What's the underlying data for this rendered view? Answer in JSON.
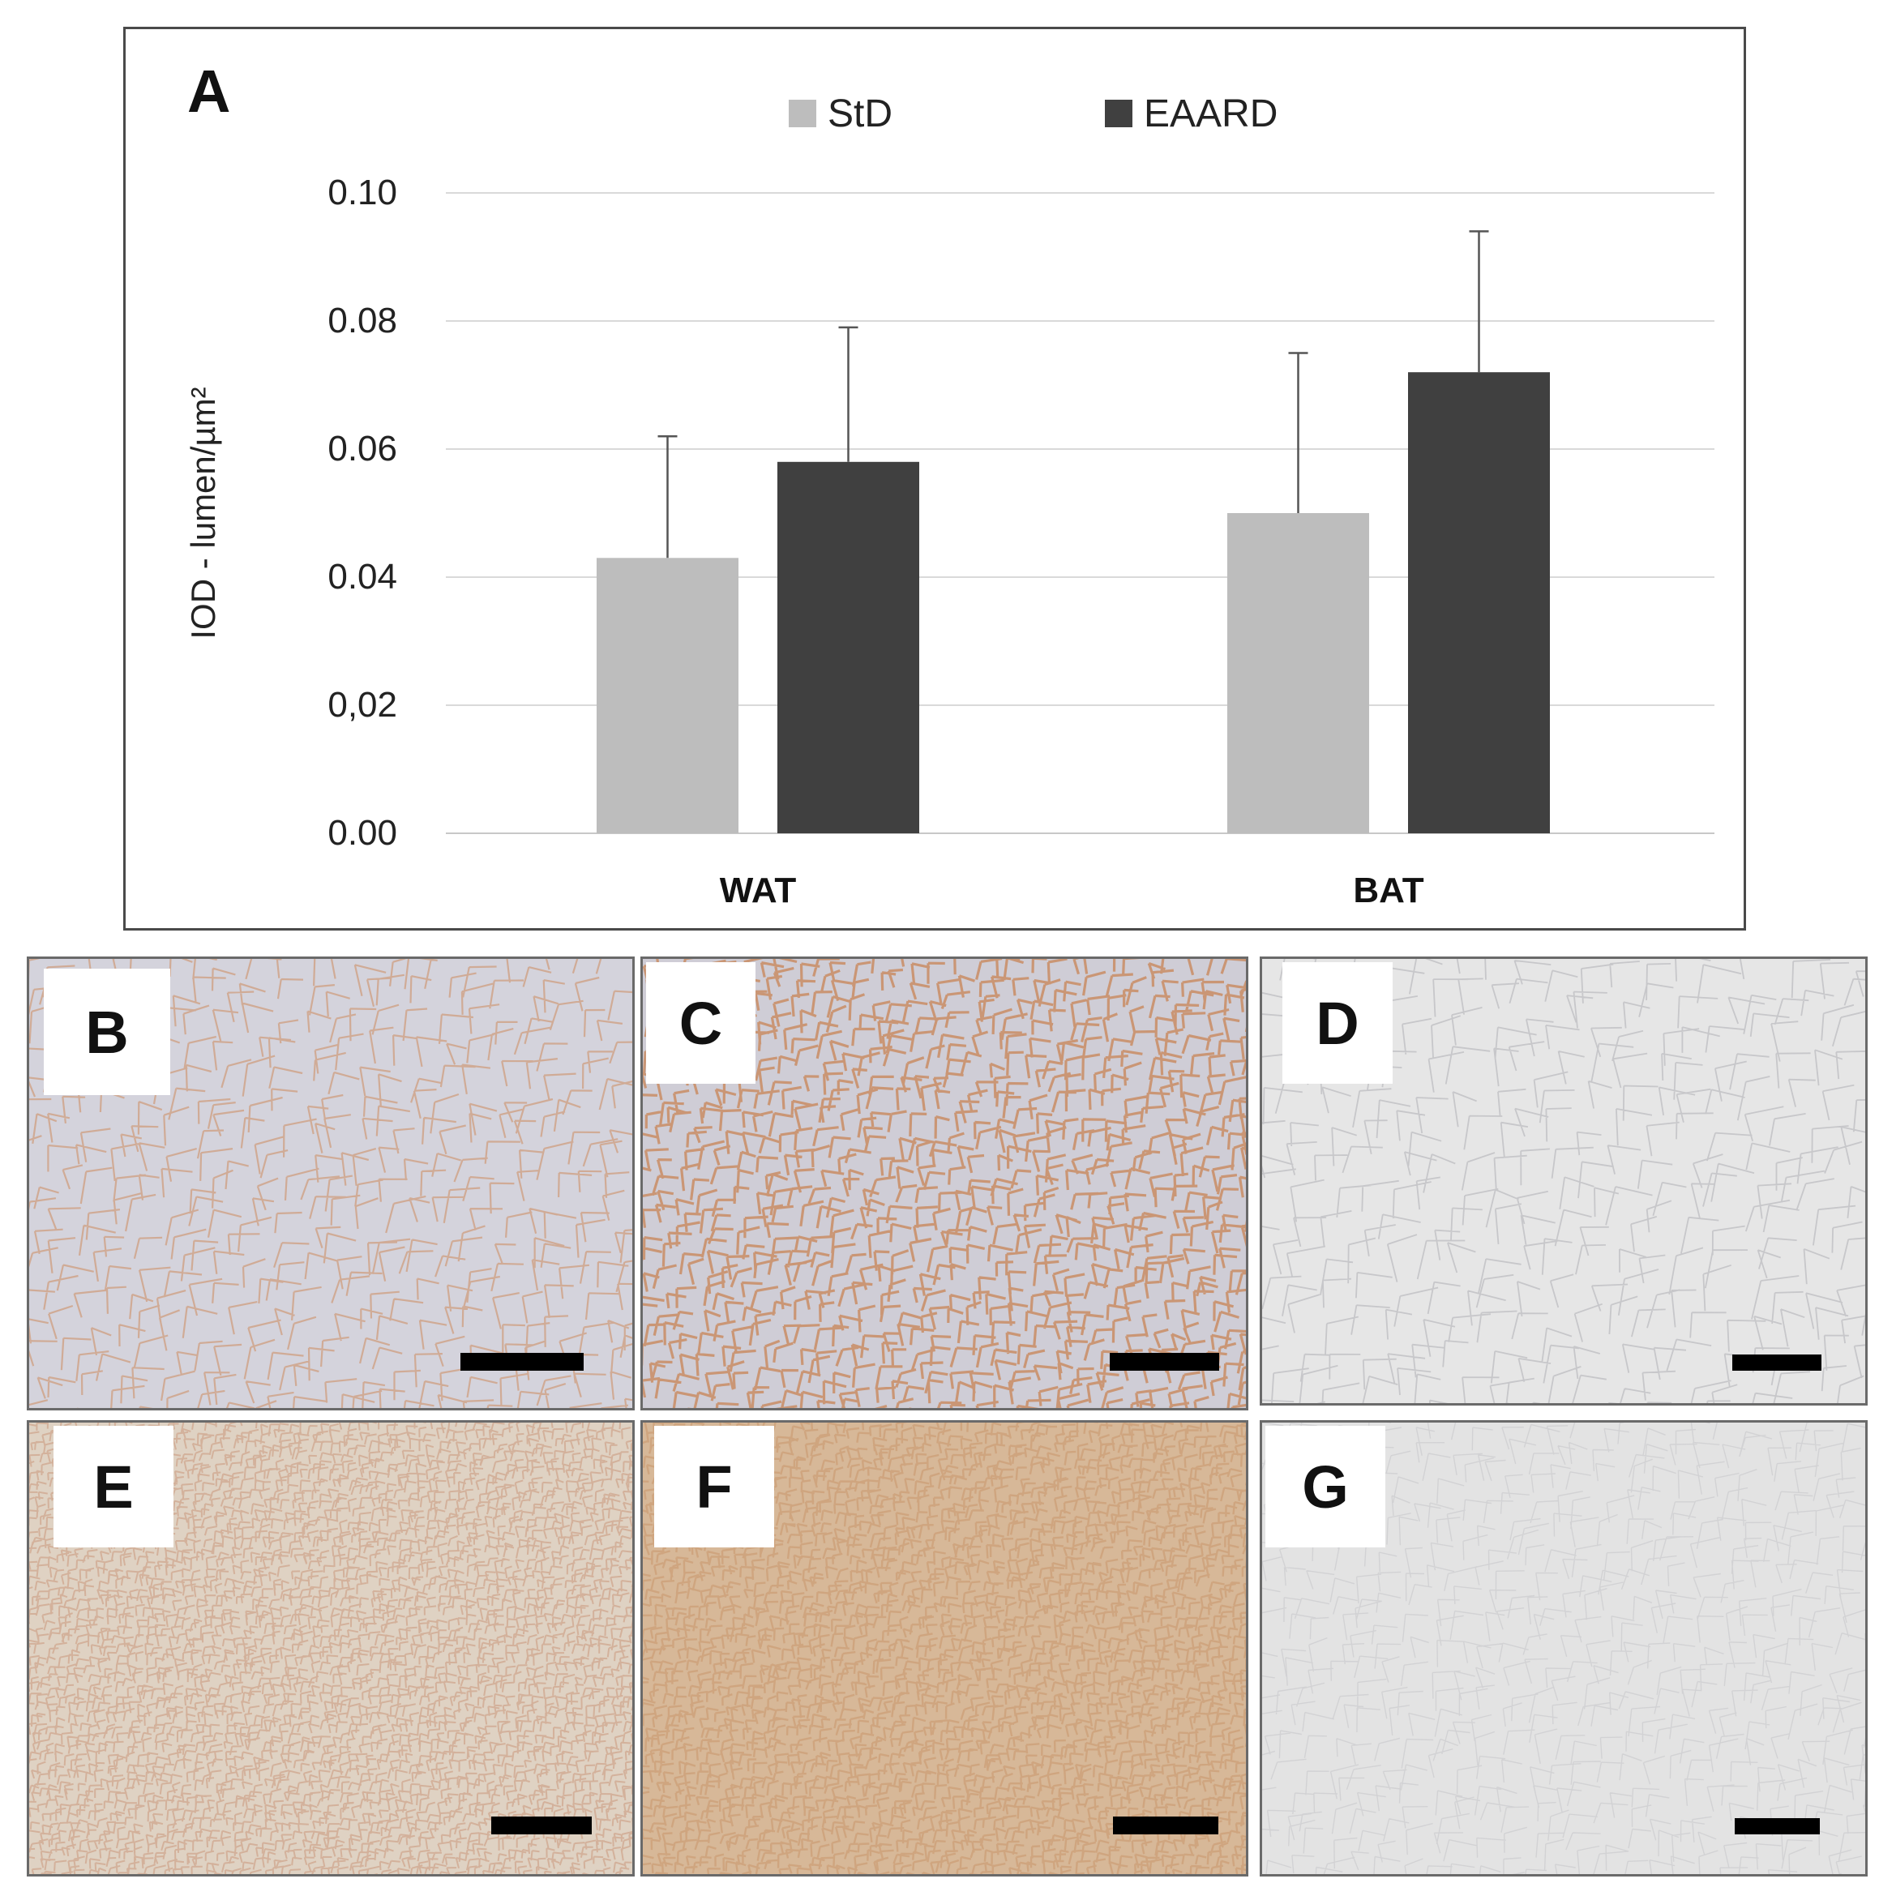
{
  "chart_data": {
    "type": "bar",
    "panel_label": "A",
    "categories": [
      "WAT",
      "BAT"
    ],
    "series": [
      {
        "name": "StD",
        "color": "#bdbdbd",
        "values": [
          0.043,
          0.05
        ],
        "errors": [
          0.019,
          0.025
        ]
      },
      {
        "name": "EAARD",
        "color": "#404040",
        "values": [
          0.058,
          0.072
        ],
        "errors": [
          0.021,
          0.022
        ]
      }
    ],
    "ylabel": "IOD - lumen/µm²",
    "xlabel": "",
    "ylim": [
      0,
      0.1
    ],
    "yticks": [
      "0.00",
      "0,02",
      "0.04",
      "0.06",
      "0.08",
      "0.10"
    ],
    "grid": true,
    "legend": "top-center"
  },
  "micrographs": [
    {
      "label": "B",
      "tissue": "wat-std"
    },
    {
      "label": "C",
      "tissue": "wat-eaard"
    },
    {
      "label": "D",
      "tissue": "wat-control"
    },
    {
      "label": "E",
      "tissue": "bat-std"
    },
    {
      "label": "F",
      "tissue": "bat-eaard"
    },
    {
      "label": "G",
      "tissue": "bat-control"
    }
  ]
}
